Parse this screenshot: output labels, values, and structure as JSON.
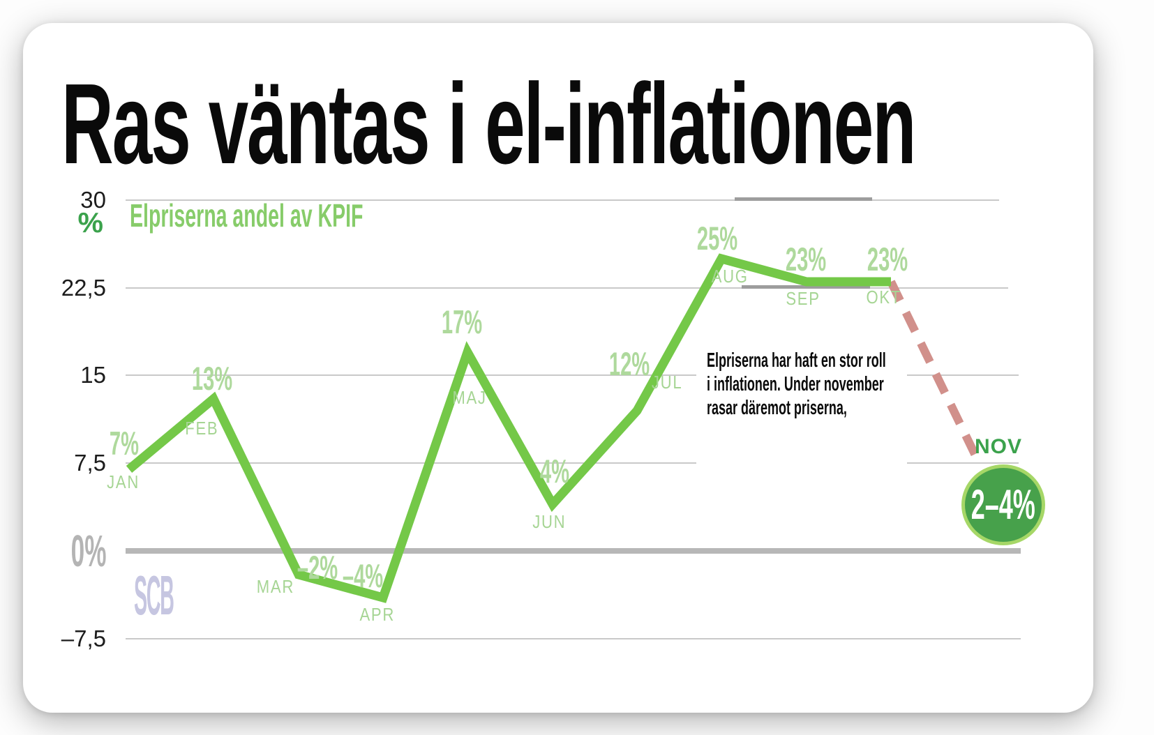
{
  "headline": "Ras väntas i el-inflationen",
  "chart_data": {
    "type": "line",
    "title": "Ras väntas i el-inflationen",
    "subtitle": "Elpriserna andel av KPIF",
    "source": "SCB",
    "categories": [
      "JAN",
      "FEB",
      "MAR",
      "APR",
      "MAJ",
      "JUN",
      "JUL",
      "AUG",
      "SEP",
      "OKT"
    ],
    "values": [
      7,
      13,
      -2,
      -4,
      17,
      4,
      12,
      25,
      23,
      23
    ],
    "value_labels": [
      "7%",
      "13%",
      "–2%",
      "–4%",
      "17%",
      "4%",
      "12%",
      "25%",
      "23%",
      "23%"
    ],
    "forecast": {
      "month": "NOV",
      "value_label": "2–4%",
      "value_range": [
        2,
        4
      ],
      "style": "dashed-projection"
    },
    "annotation": {
      "lines": [
        "Elpriserna har haft en stor roll",
        "i inflationen. Under november",
        "rasar däremot priserna,"
      ]
    },
    "y_axis": {
      "unit_label": "%",
      "range": [
        -7.5,
        30
      ],
      "ticks": [
        {
          "value": 30,
          "label": "30"
        },
        {
          "value": 22.5,
          "label": "22,5"
        },
        {
          "value": 15,
          "label": "15"
        },
        {
          "value": 7.5,
          "label": "7,5"
        },
        {
          "value": 0,
          "label": "0%",
          "emphasized": true
        },
        {
          "value": -7.5,
          "label": "–7,5"
        }
      ],
      "grid": true
    },
    "legend_position": "none",
    "colors": {
      "line": "#74c848",
      "value_label": "#aed99c",
      "month_label": "#a6d594",
      "subtitle": "#87cc6a",
      "unit": "#3ba24c",
      "forecast_dash": "#d1908b",
      "forecast_green": "#3ba24c",
      "badge_fill": "#47a14b",
      "badge_ring": "#a6d767",
      "zero_gray": "#b4b4b4",
      "source_logo": "#c6c6e1",
      "text": "#0a0a0a"
    }
  }
}
